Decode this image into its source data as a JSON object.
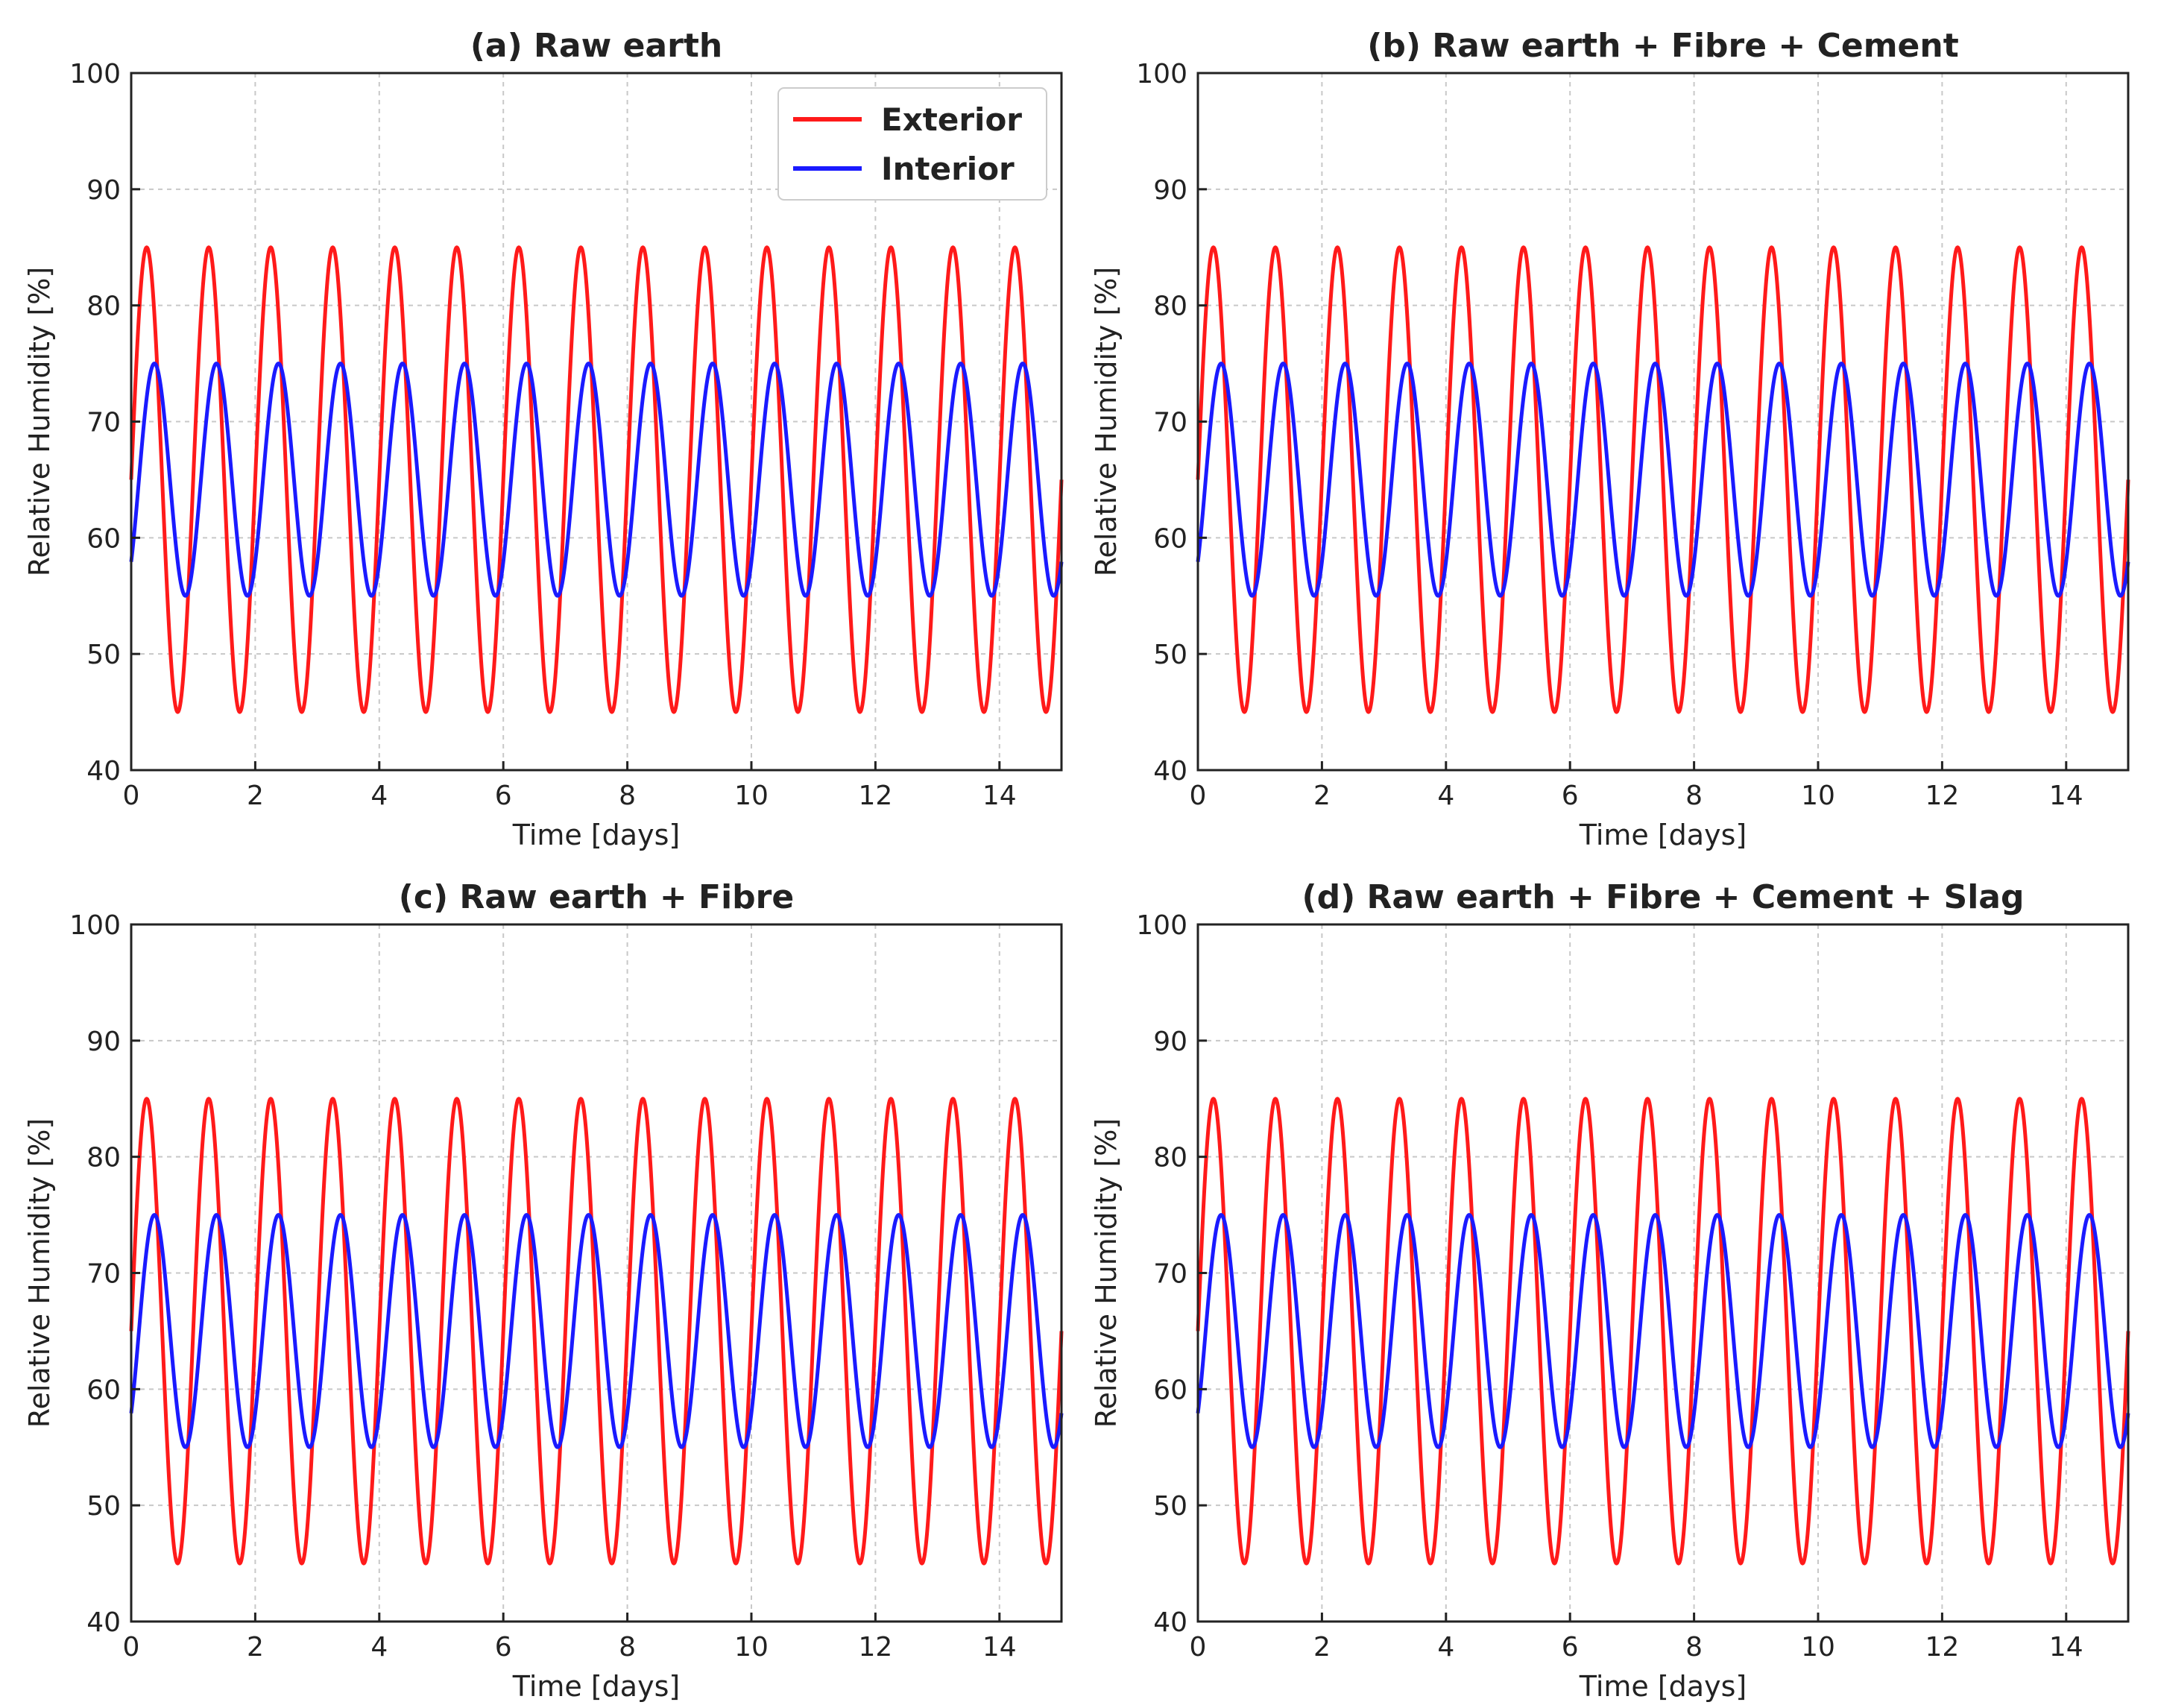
{
  "chart_data": [
    {
      "type": "line",
      "title": "(a) Raw earth",
      "xlabel": "Time [days]",
      "ylabel": "Relative Humidity [%]",
      "xlim": [
        0,
        15
      ],
      "ylim": [
        40,
        100
      ],
      "xticks": [
        0,
        2,
        4,
        6,
        8,
        10,
        12,
        14
      ],
      "yticks": [
        40,
        50,
        60,
        70,
        80,
        90,
        100
      ],
      "grid": true,
      "legend": "top-right",
      "series": [
        {
          "name": "Exterior",
          "color": "#ff1a1a",
          "function": "65 + 20*sin(2*pi*t)",
          "mean": 65,
          "amplitude": 20,
          "period_days": 1,
          "phase_days": 0,
          "t_start": 0,
          "t_end": 15
        },
        {
          "name": "Interior",
          "color": "#1a1aff",
          "function": "65 + 10*sin(2*pi*(t-0.125))",
          "mean": 65,
          "amplitude": 10,
          "period_days": 1,
          "phase_days": 0.125,
          "t_start": 0,
          "t_end": 15
        }
      ]
    },
    {
      "type": "line",
      "title": "(b) Raw earth + Fibre + Cement",
      "xlabel": "Time [days]",
      "ylabel": "Relative Humidity [%]",
      "xlim": [
        0,
        15
      ],
      "ylim": [
        40,
        100
      ],
      "xticks": [
        0,
        2,
        4,
        6,
        8,
        10,
        12,
        14
      ],
      "yticks": [
        40,
        50,
        60,
        70,
        80,
        90,
        100
      ],
      "grid": true,
      "legend": "none",
      "series": [
        {
          "name": "Exterior",
          "color": "#ff1a1a",
          "function": "65 + 20*sin(2*pi*t)",
          "mean": 65,
          "amplitude": 20,
          "period_days": 1,
          "phase_days": 0,
          "t_start": 0,
          "t_end": 15
        },
        {
          "name": "Interior",
          "color": "#1a1aff",
          "function": "65 + 10*sin(2*pi*(t-0.125))",
          "mean": 65,
          "amplitude": 10,
          "period_days": 1,
          "phase_days": 0.125,
          "t_start": 0,
          "t_end": 15
        }
      ]
    },
    {
      "type": "line",
      "title": "(c) Raw earth + Fibre",
      "xlabel": "Time [days]",
      "ylabel": "Relative Humidity [%]",
      "xlim": [
        0,
        15
      ],
      "ylim": [
        40,
        100
      ],
      "xticks": [
        0,
        2,
        4,
        6,
        8,
        10,
        12,
        14
      ],
      "yticks": [
        40,
        50,
        60,
        70,
        80,
        90,
        100
      ],
      "grid": true,
      "legend": "none",
      "series": [
        {
          "name": "Exterior",
          "color": "#ff1a1a",
          "function": "65 + 20*sin(2*pi*t)",
          "mean": 65,
          "amplitude": 20,
          "period_days": 1,
          "phase_days": 0,
          "t_start": 0,
          "t_end": 15
        },
        {
          "name": "Interior",
          "color": "#1a1aff",
          "function": "65 + 10*sin(2*pi*(t-0.125))",
          "mean": 65,
          "amplitude": 10,
          "period_days": 1,
          "phase_days": 0.125,
          "t_start": 0,
          "t_end": 15
        }
      ]
    },
    {
      "type": "line",
      "title": "(d) Raw earth + Fibre + Cement + Slag",
      "xlabel": "Time [days]",
      "ylabel": "Relative Humidity [%]",
      "xlim": [
        0,
        15
      ],
      "ylim": [
        40,
        100
      ],
      "xticks": [
        0,
        2,
        4,
        6,
        8,
        10,
        12,
        14
      ],
      "yticks": [
        40,
        50,
        60,
        70,
        80,
        90,
        100
      ],
      "grid": true,
      "legend": "none",
      "series": [
        {
          "name": "Exterior",
          "color": "#ff1a1a",
          "function": "65 + 20*sin(2*pi*t)",
          "mean": 65,
          "amplitude": 20,
          "period_days": 1,
          "phase_days": 0,
          "t_start": 0,
          "t_end": 15
        },
        {
          "name": "Interior",
          "color": "#1a1aff",
          "function": "65 + 10*sin(2*pi*(t-0.125))",
          "mean": 65,
          "amplitude": 10,
          "period_days": 1,
          "phase_days": 0.125,
          "t_start": 0,
          "t_end": 15
        }
      ]
    }
  ]
}
